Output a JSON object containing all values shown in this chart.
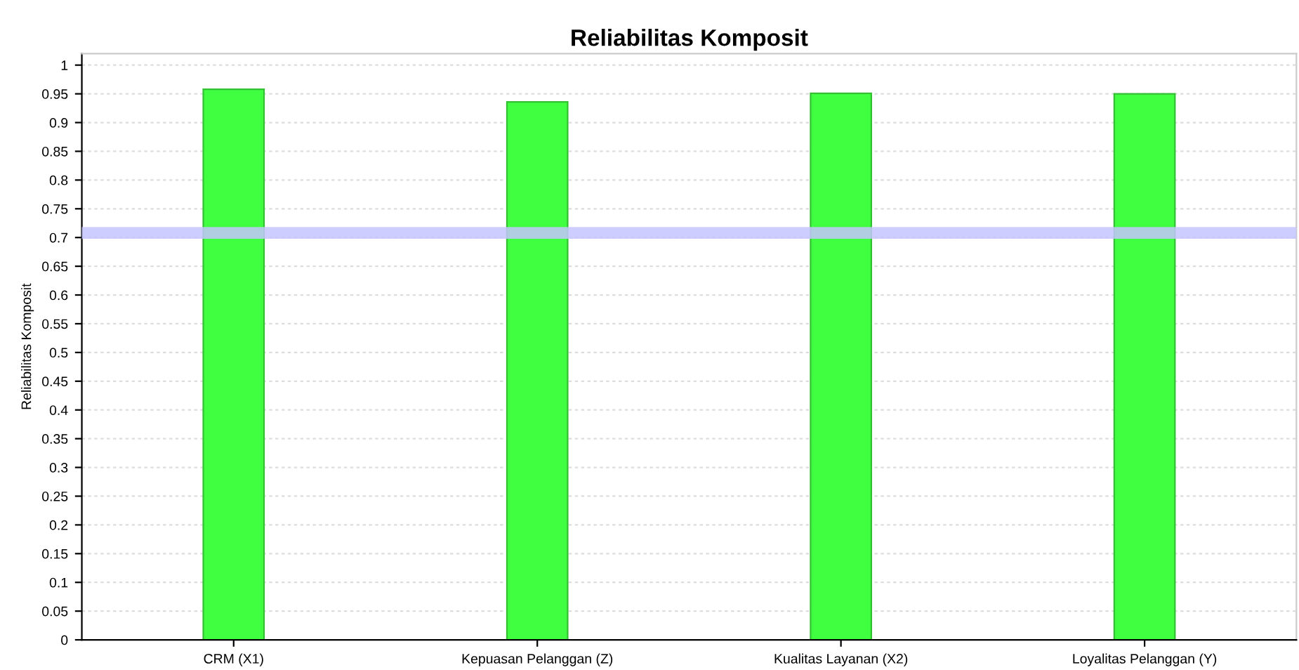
{
  "chart_data": {
    "type": "bar",
    "title": "Reliabilitas Komposit",
    "ylabel": "Reliabilitas Komposit",
    "categories": [
      "CRM (X1)",
      "Kepuasan Pelanggan (Z)",
      "Kualitas Layanan (X2)",
      "Loyalitas Pelanggan (Y)"
    ],
    "values": [
      0.958,
      0.936,
      0.951,
      0.95
    ],
    "color": "#40ff40",
    "ylim": [
      0,
      1.02
    ],
    "yticks": [
      0,
      0.05,
      0.1,
      0.15,
      0.2,
      0.25,
      0.3,
      0.35,
      0.4,
      0.45,
      0.5,
      0.55,
      0.6,
      0.65,
      0.7,
      0.75,
      0.8,
      0.85,
      0.9,
      0.95,
      1
    ],
    "ref_lines": [
      {
        "axis": "y",
        "value": 0.708,
        "color": "#c4c4ff"
      }
    ],
    "grid": "y"
  }
}
